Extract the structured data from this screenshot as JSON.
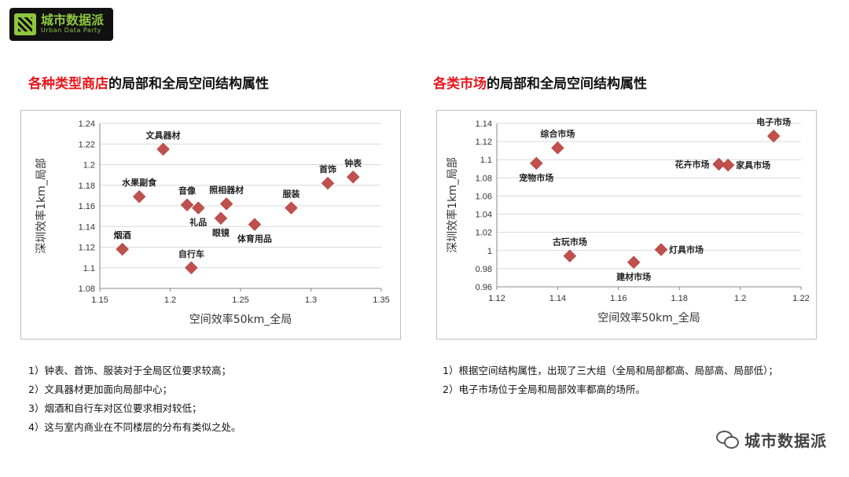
{
  "logo": {
    "cn": "城市数据派",
    "en": "Urban Data Party"
  },
  "left": {
    "title_highlight": "各种类型商店",
    "title_rest": "的局部和全局空间结构属性",
    "notes": [
      "1）钟表、首饰、服装对于全局区位要求较高；",
      "2）文具器材更加面向局部中心；",
      "3）烟酒和自行车对区位要求相对较低；",
      "4）这与室内商业在不同楼层的分布有类似之处。"
    ]
  },
  "right": {
    "title_highlight": "各类市场",
    "title_rest": "的局部和全局空间结构属性",
    "notes": [
      "1）根据空间结构属性，出现了三大组（全局和局部都高、局部高、局部低）；",
      "2）电子市场位于全局和局部效率都高的场所。"
    ]
  },
  "chart_data": [
    {
      "type": "scatter",
      "xlabel": "空间效率50km_全局",
      "ylabel": "深圳效率1km_局部",
      "xlim": [
        1.15,
        1.35
      ],
      "ylim": [
        1.08,
        1.24
      ],
      "xticks": [
        1.15,
        1.2,
        1.25,
        1.3,
        1.35
      ],
      "yticks": [
        1.08,
        1.1,
        1.12,
        1.14,
        1.16,
        1.18,
        1.2,
        1.22,
        1.24
      ],
      "xtick_labels": [
        "1.15",
        "1.2",
        "1.25",
        "1.3",
        "1.35"
      ],
      "ytick_labels": [
        "1.08",
        "1.1",
        "1.12",
        "1.14",
        "1.16",
        "1.18",
        "1.2",
        "1.22",
        "1.24"
      ],
      "grid": "horizontal",
      "marker_color": "#c0504d",
      "points": [
        {
          "label": "文具器材",
          "x": 1.195,
          "y": 1.215,
          "label_pos": "top"
        },
        {
          "label": "水果副食",
          "x": 1.178,
          "y": 1.169,
          "label_pos": "top"
        },
        {
          "label": "音像",
          "x": 1.212,
          "y": 1.161,
          "label_pos": "top"
        },
        {
          "label": "礼品",
          "x": 1.22,
          "y": 1.158,
          "label_pos": "bottom"
        },
        {
          "label": "照相器材",
          "x": 1.24,
          "y": 1.162,
          "label_pos": "top"
        },
        {
          "label": "眼镜",
          "x": 1.236,
          "y": 1.148,
          "label_pos": "bottom"
        },
        {
          "label": "体育用品",
          "x": 1.26,
          "y": 1.142,
          "label_pos": "bottom"
        },
        {
          "label": "服装",
          "x": 1.286,
          "y": 1.158,
          "label_pos": "top"
        },
        {
          "label": "首饰",
          "x": 1.312,
          "y": 1.182,
          "label_pos": "top"
        },
        {
          "label": "钟表",
          "x": 1.33,
          "y": 1.188,
          "label_pos": "top"
        },
        {
          "label": "烟酒",
          "x": 1.166,
          "y": 1.118,
          "label_pos": "top"
        },
        {
          "label": "自行车",
          "x": 1.215,
          "y": 1.1,
          "label_pos": "top"
        }
      ]
    },
    {
      "type": "scatter",
      "xlabel": "空间效率50km_全局",
      "ylabel": "深圳效率1km_局部",
      "xlim": [
        1.12,
        1.22
      ],
      "ylim": [
        0.96,
        1.14
      ],
      "xticks": [
        1.12,
        1.14,
        1.16,
        1.18,
        1.2,
        1.22
      ],
      "yticks": [
        0.96,
        0.98,
        1.0,
        1.02,
        1.04,
        1.06,
        1.08,
        1.1,
        1.12,
        1.14
      ],
      "xtick_labels": [
        "1.12",
        "1.14",
        "1.16",
        "1.18",
        "1.2",
        "1.22"
      ],
      "ytick_labels": [
        "0.96",
        "0.98",
        "1",
        "1.02",
        "1.04",
        "1.06",
        "1.08",
        "1.1",
        "1.12",
        "1.14"
      ],
      "grid": "horizontal",
      "marker_color": "#c0504d",
      "points": [
        {
          "label": "综合市场",
          "x": 1.14,
          "y": 1.113,
          "label_pos": "top"
        },
        {
          "label": "宠物市场",
          "x": 1.133,
          "y": 1.096,
          "label_pos": "bottom"
        },
        {
          "label": "电子市场",
          "x": 1.211,
          "y": 1.126,
          "label_pos": "top"
        },
        {
          "label": "花卉市场",
          "x": 1.193,
          "y": 1.095,
          "label_pos": "left"
        },
        {
          "label": "家具市场",
          "x": 1.196,
          "y": 1.094,
          "label_pos": "right"
        },
        {
          "label": "古玩市场",
          "x": 1.144,
          "y": 0.994,
          "label_pos": "top"
        },
        {
          "label": "建材市场",
          "x": 1.165,
          "y": 0.987,
          "label_pos": "bottom"
        },
        {
          "label": "灯具市场",
          "x": 1.174,
          "y": 1.001,
          "label_pos": "right"
        }
      ]
    }
  ]
}
